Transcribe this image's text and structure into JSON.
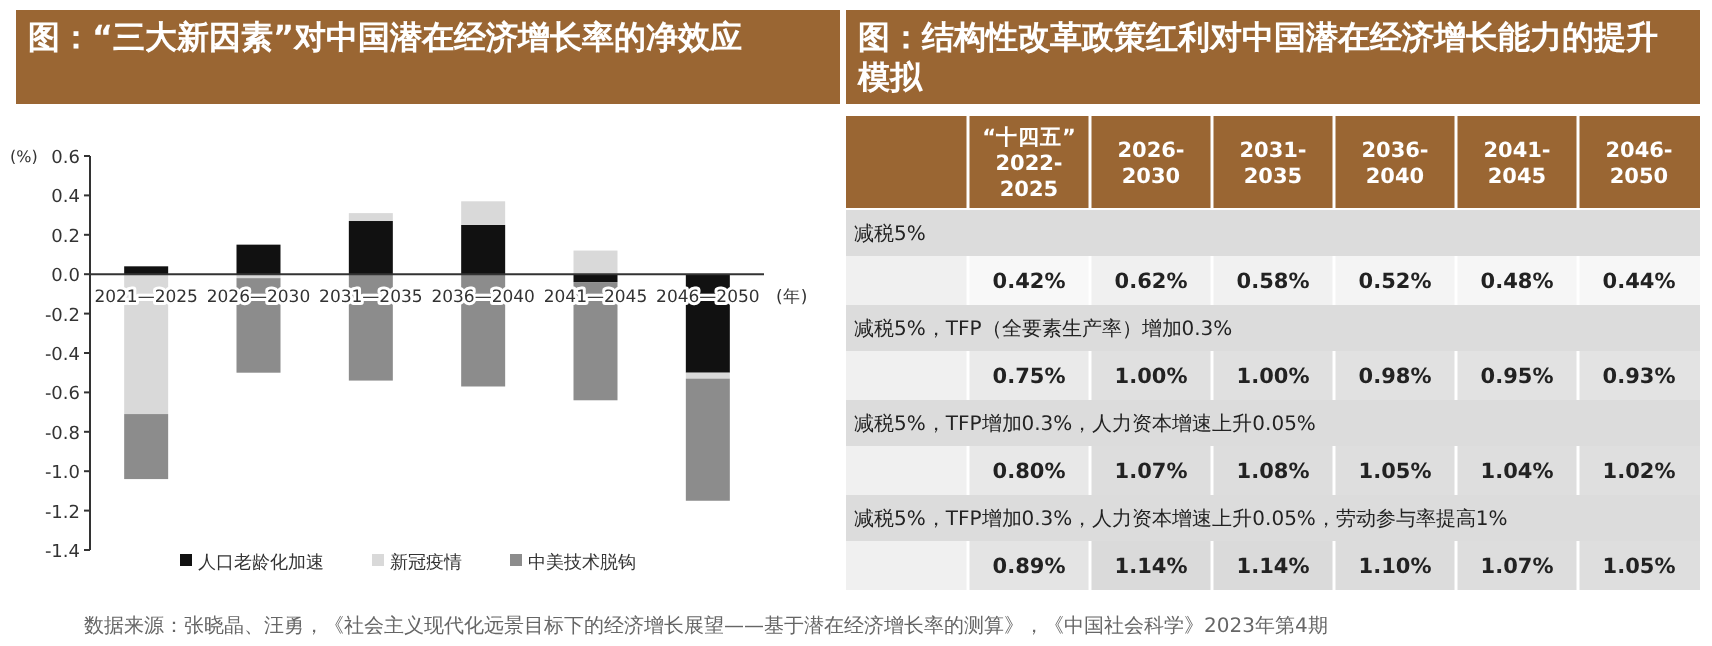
{
  "chart_data": [
    {
      "type": "bar",
      "stacked": true,
      "title": "图：“三大新因素”对中国潜在经济增长率的净效应",
      "ylabel": "(%)",
      "xlabel": "(年)",
      "categories": [
        "2021—2025",
        "2026—2030",
        "2031—2035",
        "2036—2040",
        "2041—2045",
        "2046—2050"
      ],
      "series": [
        {
          "name": "人口老龄化加速",
          "color": "#111111",
          "values": [
            0.04,
            0.15,
            0.27,
            0.25,
            -0.04,
            -0.5
          ]
        },
        {
          "name": "新冠疫情",
          "color": "#d9d9d9",
          "values": [
            -0.71,
            -0.02,
            0.04,
            0.12,
            0.12,
            -0.03
          ]
        },
        {
          "name": "中美技术脱钩",
          "color": "#8c8c8c",
          "values": [
            -0.33,
            -0.48,
            -0.54,
            -0.57,
            -0.6,
            -0.62
          ]
        }
      ],
      "ylim": [
        -1.4,
        0.6
      ],
      "yticks": [
        {
          "value": 0.6,
          "label": "0.6"
        },
        {
          "value": 0.4,
          "label": "0.4"
        },
        {
          "value": 0.2,
          "label": "0.2"
        },
        {
          "value": 0,
          "label": "0.0"
        },
        {
          "value": -0.2,
          "label": "-0.2"
        },
        {
          "value": -0.4,
          "label": "-0.4"
        },
        {
          "value": -0.6,
          "label": "-0.6"
        },
        {
          "value": -0.8,
          "label": "-0.8"
        },
        {
          "value": -1,
          "label": "-1.0"
        },
        {
          "value": -1.2,
          "label": "-1.2"
        },
        {
          "value": -1.4,
          "label": "-1.4"
        }
      ],
      "grid": false,
      "legend": "bottom",
      "annotations": [
        "数据来源：张晓晶、汪勇，《社会主义现代化远景目标下的经济增长展望——基于潜在经济增长率的测算》，《中国社会科学》2023年第4期"
      ]
    },
    {
      "type": "heatmap",
      "title": "图：结构性改革政策红利对中国潜在经济增长能力的提升模拟",
      "categories": [
        "“十四五”\n2022-\n2025",
        "2026-\n2030",
        "2031-\n2035",
        "2036-\n2040",
        "2041-\n2045",
        "2046-\n2050"
      ],
      "y_categories": [
        "减税5%",
        "减税5%，TFP（全要素生产率）增加0.3%",
        "减税5%，TFP增加0.3%，人力资本增速上升0.05%",
        "减税5%，TFP增加0.3%，人力资本增速上升0.05%，劳动参与率提高1%"
      ],
      "cells": [
        [
          0.42,
          0.62,
          0.58,
          0.52,
          0.48,
          0.44
        ],
        [
          0.75,
          1.0,
          1.0,
          0.98,
          0.95,
          0.93
        ],
        [
          0.8,
          1.07,
          1.08,
          1.05,
          1.04,
          1.02
        ],
        [
          0.89,
          1.14,
          1.14,
          1.1,
          1.07,
          1.05
        ]
      ],
      "cell_labels": [
        [
          "0.42%",
          "0.62%",
          "0.58%",
          "0.52%",
          "0.48%",
          "0.44%"
        ],
        [
          "0.75%",
          "1.00%",
          "1.00%",
          "0.98%",
          "0.95%",
          "0.93%"
        ],
        [
          "0.80%",
          "1.07%",
          "1.08%",
          "1.05%",
          "1.04%",
          "1.02%"
        ],
        [
          "0.89%",
          "1.14%",
          "1.14%",
          "1.10%",
          "1.07%",
          "1.05%"
        ]
      ]
    }
  ]
}
